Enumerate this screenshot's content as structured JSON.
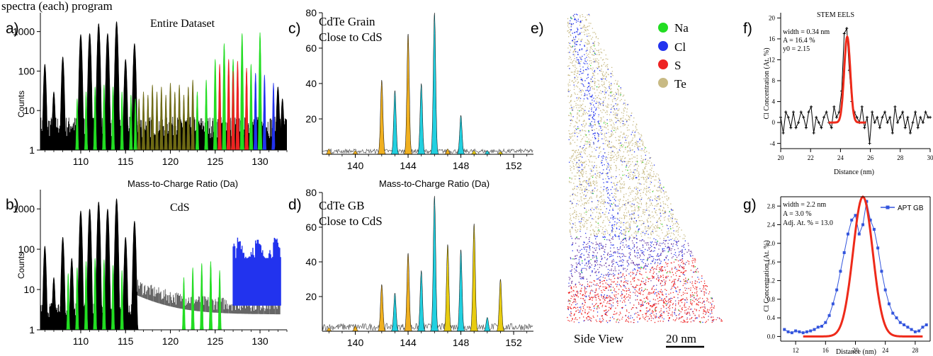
{
  "colors": {
    "black": "#000000",
    "green": "#22dd22",
    "olive": "#6e6a14",
    "red": "#ee2222",
    "blue": "#2233ee",
    "orange": "#f0b020",
    "cyan": "#22d0e0",
    "yellow": "#e8cc10",
    "tan": "#c8ba84",
    "fit_red": "#ee2a1a",
    "apt_blue": "#3355dd"
  },
  "top_caption": "spectra (each) program",
  "chart_data": [
    {
      "id": "a",
      "panel_label": "a)",
      "type": "area",
      "title": "Entire Dataset",
      "xlabel": "Mass-to-Charge Ratio (Da)",
      "ylabel": "Counts",
      "xlim": [
        105.5,
        133
      ],
      "ylim": [
        1,
        3000
      ],
      "yscale": "log",
      "xticks": [
        110,
        115,
        120,
        125,
        130
      ],
      "yticks": [
        1,
        10,
        100,
        1000
      ],
      "peaks": [
        {
          "x": 106,
          "h": 150,
          "c": "black"
        },
        {
          "x": 107,
          "h": 30,
          "c": "black"
        },
        {
          "x": 108,
          "h": 230,
          "c": "black"
        },
        {
          "x": 110,
          "h": 850,
          "c": "black"
        },
        {
          "x": 111,
          "h": 900,
          "c": "black"
        },
        {
          "x": 112,
          "h": 1600,
          "c": "black"
        },
        {
          "x": 113,
          "h": 900,
          "c": "black"
        },
        {
          "x": 114,
          "h": 1800,
          "c": "black"
        },
        {
          "x": 115,
          "h": 200,
          "c": "black"
        },
        {
          "x": 116,
          "h": 500,
          "c": "black"
        },
        {
          "x": 109.6,
          "h": 20,
          "c": "green"
        },
        {
          "x": 110.6,
          "h": 30,
          "c": "green"
        },
        {
          "x": 111.6,
          "h": 40,
          "c": "green"
        },
        {
          "x": 112.6,
          "h": 45,
          "c": "green"
        },
        {
          "x": 113.6,
          "h": 40,
          "c": "green"
        },
        {
          "x": 114.6,
          "h": 30,
          "c": "green"
        },
        {
          "x": 115.6,
          "h": 25,
          "c": "green"
        },
        {
          "x": 116.1,
          "h": 20,
          "c": "green"
        },
        {
          "x": 116.5,
          "h": 20,
          "c": "olive"
        },
        {
          "x": 117,
          "h": 30,
          "c": "olive"
        },
        {
          "x": 117.5,
          "h": 25,
          "c": "olive"
        },
        {
          "x": 118,
          "h": 45,
          "c": "olive"
        },
        {
          "x": 118.5,
          "h": 30,
          "c": "olive"
        },
        {
          "x": 119,
          "h": 40,
          "c": "olive"
        },
        {
          "x": 119.5,
          "h": 25,
          "c": "olive"
        },
        {
          "x": 120,
          "h": 50,
          "c": "olive"
        },
        {
          "x": 120.5,
          "h": 30,
          "c": "olive"
        },
        {
          "x": 121,
          "h": 45,
          "c": "olive"
        },
        {
          "x": 121.5,
          "h": 25,
          "c": "olive"
        },
        {
          "x": 122,
          "h": 40,
          "c": "olive"
        },
        {
          "x": 122.5,
          "h": 60,
          "c": "olive"
        },
        {
          "x": 123,
          "h": 30,
          "c": "green"
        },
        {
          "x": 124,
          "h": 60,
          "c": "green"
        },
        {
          "x": 125,
          "h": 200,
          "c": "green"
        },
        {
          "x": 126,
          "h": 500,
          "c": "green"
        },
        {
          "x": 127,
          "h": 200,
          "c": "green"
        },
        {
          "x": 128,
          "h": 900,
          "c": "green"
        },
        {
          "x": 129,
          "h": 150,
          "c": "green"
        },
        {
          "x": 130,
          "h": 950,
          "c": "green"
        },
        {
          "x": 125.5,
          "h": 150,
          "c": "red"
        },
        {
          "x": 126.5,
          "h": 200,
          "c": "red"
        },
        {
          "x": 127.5,
          "h": 180,
          "c": "red"
        },
        {
          "x": 128.5,
          "h": 120,
          "c": "red"
        },
        {
          "x": 127,
          "h": 100,
          "c": "red"
        },
        {
          "x": 129.5,
          "h": 90,
          "c": "blue"
        },
        {
          "x": 130.5,
          "h": 80,
          "c": "blue"
        },
        {
          "x": 131.5,
          "h": 50,
          "c": "blue"
        },
        {
          "x": 132,
          "h": 40,
          "c": "black"
        },
        {
          "x": 132.5,
          "h": 20,
          "c": "black"
        }
      ]
    },
    {
      "id": "b",
      "panel_label": "b)",
      "type": "area",
      "title": "CdS",
      "xlabel": "",
      "ylabel": "Counts",
      "xlim": [
        105.5,
        133
      ],
      "ylim": [
        1,
        3000
      ],
      "yscale": "log",
      "xticks": [
        110,
        115,
        120,
        125,
        130
      ],
      "yticks": [
        1,
        10,
        100,
        1000
      ],
      "peaks": [
        {
          "x": 106,
          "h": 120,
          "c": "black"
        },
        {
          "x": 107,
          "h": 20,
          "c": "black"
        },
        {
          "x": 108,
          "h": 200,
          "c": "black"
        },
        {
          "x": 109,
          "h": 60,
          "c": "black"
        },
        {
          "x": 110,
          "h": 900,
          "c": "black"
        },
        {
          "x": 111,
          "h": 1000,
          "c": "black"
        },
        {
          "x": 112,
          "h": 1500,
          "c": "black"
        },
        {
          "x": 113,
          "h": 1000,
          "c": "black"
        },
        {
          "x": 114,
          "h": 1800,
          "c": "black"
        },
        {
          "x": 115,
          "h": 200,
          "c": "black"
        },
        {
          "x": 116,
          "h": 500,
          "c": "black"
        },
        {
          "x": 108.6,
          "h": 25,
          "c": "green"
        },
        {
          "x": 109.6,
          "h": 35,
          "c": "green"
        },
        {
          "x": 110.6,
          "h": 50,
          "c": "green"
        },
        {
          "x": 111.6,
          "h": 60,
          "c": "green"
        },
        {
          "x": 112.6,
          "h": 55,
          "c": "green"
        },
        {
          "x": 113.6,
          "h": 40,
          "c": "green"
        },
        {
          "x": 114.6,
          "h": 30,
          "c": "green"
        },
        {
          "x": 121.5,
          "h": 20,
          "c": "green"
        },
        {
          "x": 122.5,
          "h": 35,
          "c": "green"
        },
        {
          "x": 123.5,
          "h": 45,
          "c": "green"
        },
        {
          "x": 124.5,
          "h": 50,
          "c": "green"
        },
        {
          "x": 125.5,
          "h": 30,
          "c": "green"
        },
        {
          "x": 117,
          "h": 30,
          "c": "white"
        },
        {
          "x": 118,
          "h": 25,
          "c": "white"
        },
        {
          "x": 119,
          "h": 20,
          "c": "white"
        },
        {
          "x": 120,
          "h": 18,
          "c": "white"
        }
      ],
      "blue_band": {
        "x0": 127,
        "x1": 132.3,
        "base": 60,
        "top": 200
      }
    },
    {
      "id": "c",
      "panel_label": "c)",
      "type": "area",
      "title": [
        "CdTe Grain",
        "Close to CdS"
      ],
      "xlabel": "Mass-to-Charge Ratio (Da)",
      "ylabel": "",
      "xlim": [
        137.5,
        153.5
      ],
      "ylim": [
        0,
        80
      ],
      "xticks": [
        140,
        144,
        148,
        152
      ],
      "yticks": [
        20,
        40,
        60,
        80
      ],
      "peaks": [
        {
          "x": 138,
          "h": 3,
          "c": "orange"
        },
        {
          "x": 140,
          "h": 2,
          "c": "orange"
        },
        {
          "x": 142,
          "h": 42,
          "c": "orange"
        },
        {
          "x": 143,
          "h": 36,
          "c": "cyan"
        },
        {
          "x": 144,
          "h": 68,
          "c": "orange"
        },
        {
          "x": 145,
          "h": 40,
          "c": "cyan"
        },
        {
          "x": 146,
          "h": 80,
          "c": "cyan"
        },
        {
          "x": 147,
          "h": 3,
          "c": "orange"
        },
        {
          "x": 148,
          "h": 22,
          "c": "cyan"
        },
        {
          "x": 149,
          "h": 2,
          "c": "yellow"
        },
        {
          "x": 150,
          "h": 2,
          "c": "cyan"
        },
        {
          "x": 151,
          "h": 1.5,
          "c": "yellow"
        }
      ]
    },
    {
      "id": "d",
      "panel_label": "d)",
      "type": "area",
      "title": [
        "CdTe GB",
        "Close to CdS"
      ],
      "xlabel": "",
      "ylabel": "",
      "xlim": [
        137.5,
        153.5
      ],
      "ylim": [
        0,
        80
      ],
      "xticks": [
        140,
        144,
        148,
        152
      ],
      "yticks": [
        20,
        40,
        60,
        80
      ],
      "peaks": [
        {
          "x": 138,
          "h": 2,
          "c": "orange"
        },
        {
          "x": 140,
          "h": 3,
          "c": "orange"
        },
        {
          "x": 142,
          "h": 27,
          "c": "orange"
        },
        {
          "x": 143,
          "h": 22,
          "c": "cyan"
        },
        {
          "x": 144,
          "h": 45,
          "c": "orange"
        },
        {
          "x": 145,
          "h": 35,
          "c": "cyan"
        },
        {
          "x": 146,
          "h": 78,
          "c": "cyan"
        },
        {
          "x": 147,
          "h": 50,
          "c": "yellow"
        },
        {
          "x": 148,
          "h": 47,
          "c": "cyan"
        },
        {
          "x": 149,
          "h": 62,
          "c": "yellow"
        },
        {
          "x": 150,
          "h": 8,
          "c": "cyan"
        },
        {
          "x": 151,
          "h": 30,
          "c": "yellow"
        }
      ]
    },
    {
      "id": "f",
      "panel_label": "f)",
      "type": "line",
      "title": "STEM EELS",
      "xlabel": "Distance (nm)",
      "ylabel": "Cl Concentration (At. %)",
      "xlim": [
        20,
        30
      ],
      "ylim": [
        -5,
        21
      ],
      "xticks": [
        20,
        22,
        24,
        26,
        28,
        30
      ],
      "yticks": [
        -4,
        0,
        4,
        8,
        12,
        16,
        20
      ],
      "annotations": [
        "width = 0.34 nm",
        "A = 16.4 %",
        "y0 = 2.15"
      ],
      "series": [
        {
          "name": "",
          "type": "data",
          "color": "black",
          "x": [
            20,
            20.17,
            20.34,
            20.51,
            20.68,
            20.85,
            21.02,
            21.19,
            21.36,
            21.53,
            21.7,
            21.87,
            22.04,
            22.21,
            22.38,
            22.55,
            22.72,
            22.89,
            23.06,
            23.23,
            23.4,
            23.57,
            23.74,
            23.91,
            24.08,
            24.25,
            24.42,
            24.59,
            24.76,
            24.93,
            25.1,
            25.27,
            25.44,
            25.61,
            25.78,
            25.95,
            26.12,
            26.29,
            26.46,
            26.63,
            26.8,
            26.97,
            27.14,
            27.31,
            27.48,
            27.65,
            27.82,
            27.99,
            28.16,
            28.33,
            28.5,
            28.67,
            28.84,
            29.01,
            29.18,
            29.35,
            29.52,
            29.69,
            29.86,
            30
          ],
          "y": [
            1,
            -2,
            2,
            1,
            -1,
            2,
            -1,
            0,
            2,
            1,
            -1,
            2,
            3,
            -2,
            1,
            0,
            -1,
            1,
            2,
            0,
            -1,
            3,
            1,
            2,
            6,
            17,
            18,
            10,
            4,
            2,
            1,
            0,
            3,
            -1,
            1,
            -4,
            2,
            0,
            1,
            -1,
            1,
            2,
            0,
            1,
            -2,
            3,
            0,
            1,
            2,
            -1,
            1,
            -2,
            0,
            2,
            -1,
            1,
            0,
            2,
            1,
            1
          ]
        },
        {
          "name": "",
          "type": "fit",
          "color": "fit_red",
          "center": 24.45,
          "width": 0.34,
          "A": 16.4,
          "y0": 2.15,
          "x_range": [
            23.2,
            25.7
          ]
        }
      ]
    },
    {
      "id": "g",
      "panel_label": "g)",
      "type": "line",
      "title": "",
      "xlabel": "Distance (nm)",
      "ylabel": "Cl Concentration (At. %)",
      "xlim": [
        10,
        30
      ],
      "ylim": [
        -0.1,
        3.0
      ],
      "xticks": [
        12,
        16,
        20,
        24,
        28
      ],
      "yticks": [
        0.0,
        0.4,
        0.8,
        1.2,
        1.6,
        2.0,
        2.4,
        2.8
      ],
      "annotations": [
        "width = 2.2 nm",
        "A = 3.0 %",
        "Adj. At. % = 13.0"
      ],
      "legend": "APT GB",
      "series": [
        {
          "name": "APT GB",
          "type": "data",
          "color": "apt_blue",
          "x": [
            10.5,
            11,
            11.5,
            12,
            12.5,
            13,
            13.5,
            14,
            14.5,
            15,
            15.5,
            16,
            16.5,
            17,
            17.5,
            18,
            18.5,
            19,
            19.5,
            20,
            20.5,
            21,
            21.5,
            22,
            22.5,
            23,
            23.5,
            24,
            24.5,
            25,
            25.5,
            26,
            26.5,
            27,
            27.5,
            28,
            28.5,
            29,
            29.5
          ],
          "y": [
            0.15,
            0.1,
            0.08,
            0.12,
            0.1,
            0.08,
            0.1,
            0.12,
            0.15,
            0.2,
            0.22,
            0.3,
            0.45,
            0.7,
            1.0,
            1.4,
            1.8,
            2.2,
            2.5,
            2.6,
            2.2,
            2.4,
            2.9,
            2.5,
            2.3,
            1.9,
            1.4,
            1.0,
            0.7,
            0.5,
            0.4,
            0.3,
            0.25,
            0.2,
            0.15,
            0.1,
            0.12,
            0.2,
            0.25
          ]
        },
        {
          "name": "",
          "type": "fit",
          "color": "fit_red",
          "center": 21.0,
          "width": 2.2,
          "A": 3.0,
          "y0": 0.0,
          "x_range": [
            13,
            29
          ]
        }
      ]
    }
  ],
  "panel_e": {
    "label": "e)",
    "legend": [
      {
        "name": "Na",
        "color": "green"
      },
      {
        "name": "Cl",
        "color": "blue"
      },
      {
        "name": "S",
        "color": "red"
      },
      {
        "name": "Te",
        "color": "tan"
      }
    ],
    "view_label": "Side View",
    "scale_label": "20 nm"
  }
}
